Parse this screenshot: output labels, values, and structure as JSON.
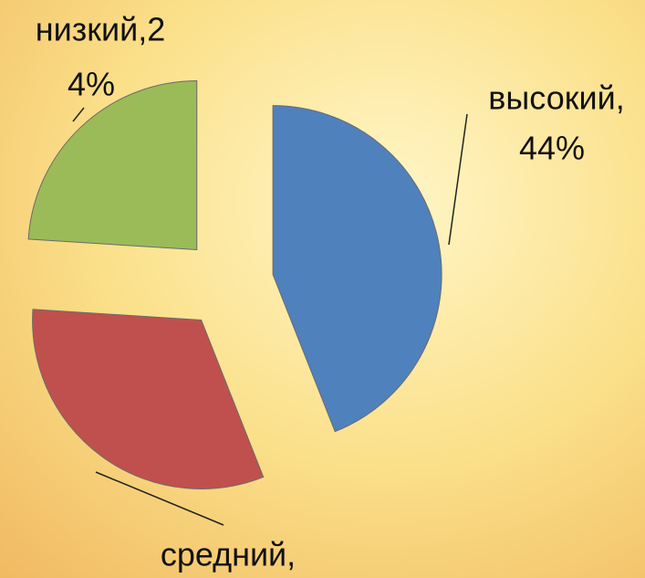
{
  "chart_data": {
    "type": "pie",
    "exploded": true,
    "values": [
      44,
      32,
      24
    ],
    "colors": [
      "#4f81bd",
      "#c0504d",
      "#9bbb59"
    ],
    "labels": [
      [
        "высокий,",
        "44%"
      ],
      [
        "средний,"
      ],
      [
        "низкий,2",
        "4%"
      ]
    ]
  }
}
